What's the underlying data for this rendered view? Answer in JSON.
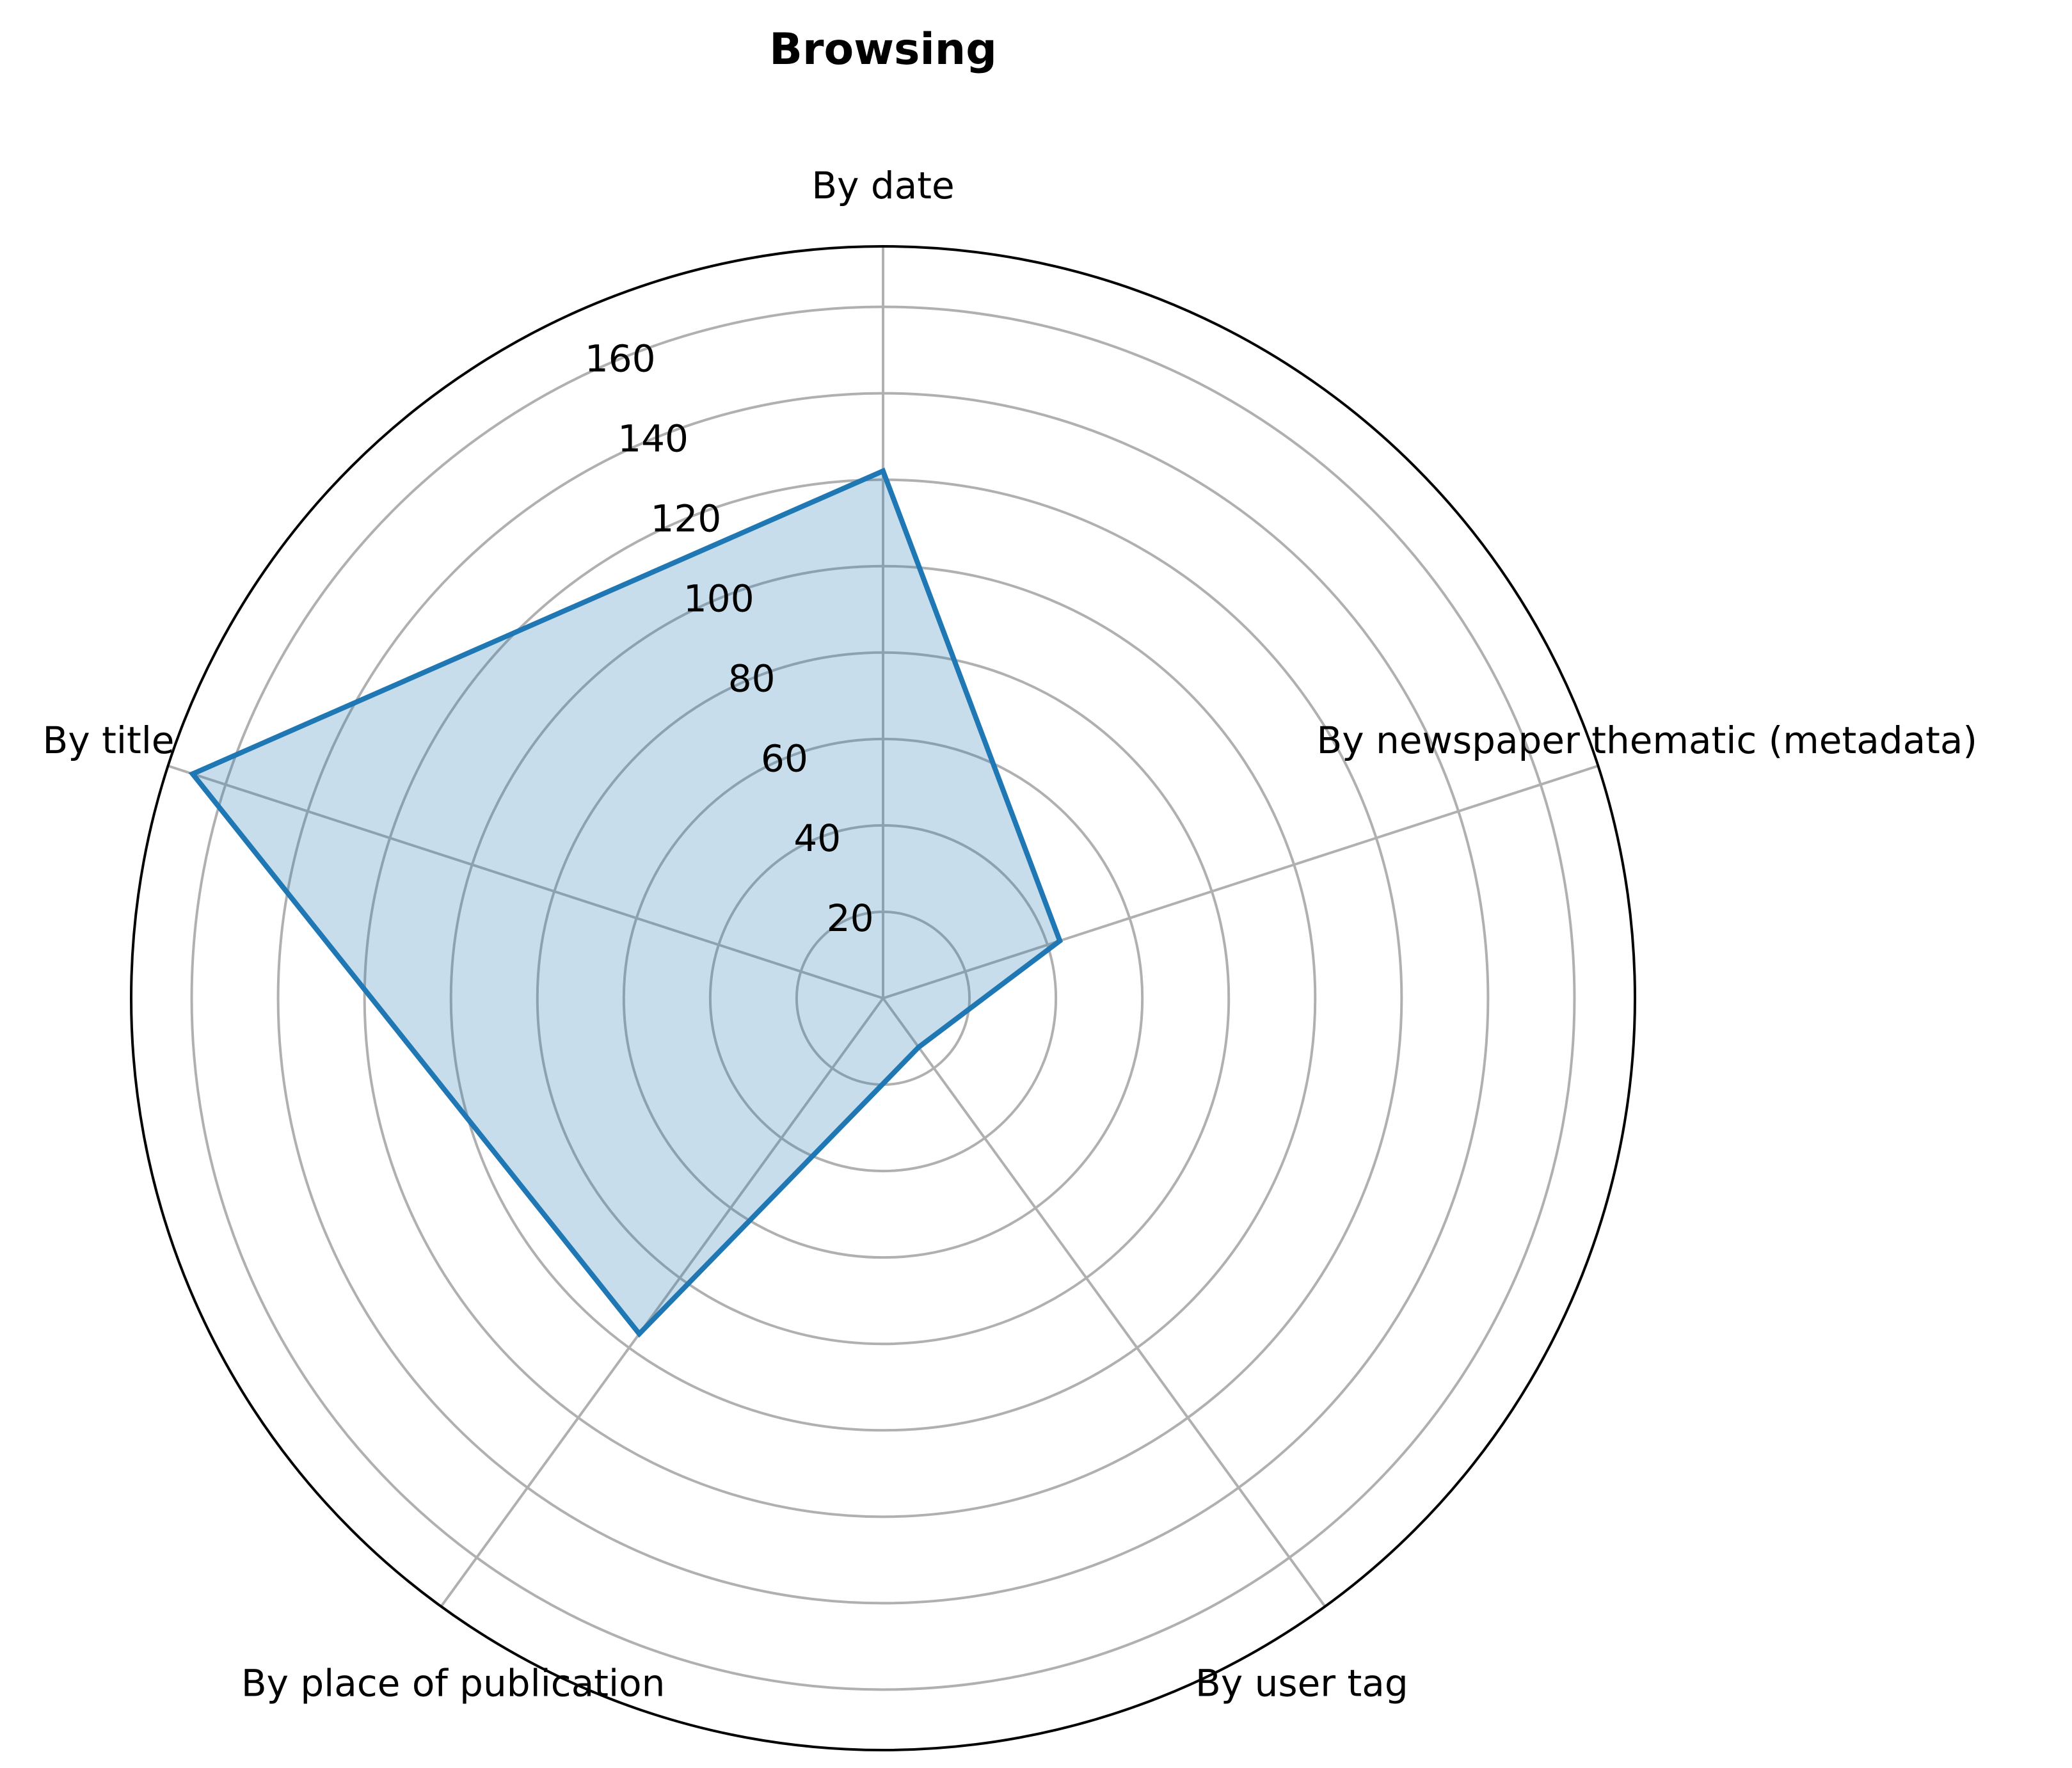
{
  "chart_data": {
    "type": "radar",
    "title": "Browsing",
    "categories": [
      "By date",
      "By newspaper thematic (metadata)",
      "By user tag",
      "By place of publication",
      "By title"
    ],
    "series": [
      {
        "values": [
          122,
          43,
          14,
          96,
          168
        ]
      }
    ],
    "rlim": [
      0,
      174
    ],
    "rticks": [
      20,
      40,
      60,
      80,
      100,
      120,
      140,
      160
    ],
    "rtick_labels": [
      "20",
      "40",
      "60",
      "80",
      "100",
      "120",
      "140",
      "160"
    ],
    "grid": true,
    "colors": {
      "line": "#1f77b4",
      "fill": "#1f77b4",
      "fill_opacity": 0.25,
      "grid": "#b0b0b0",
      "frame": "#000000"
    }
  }
}
